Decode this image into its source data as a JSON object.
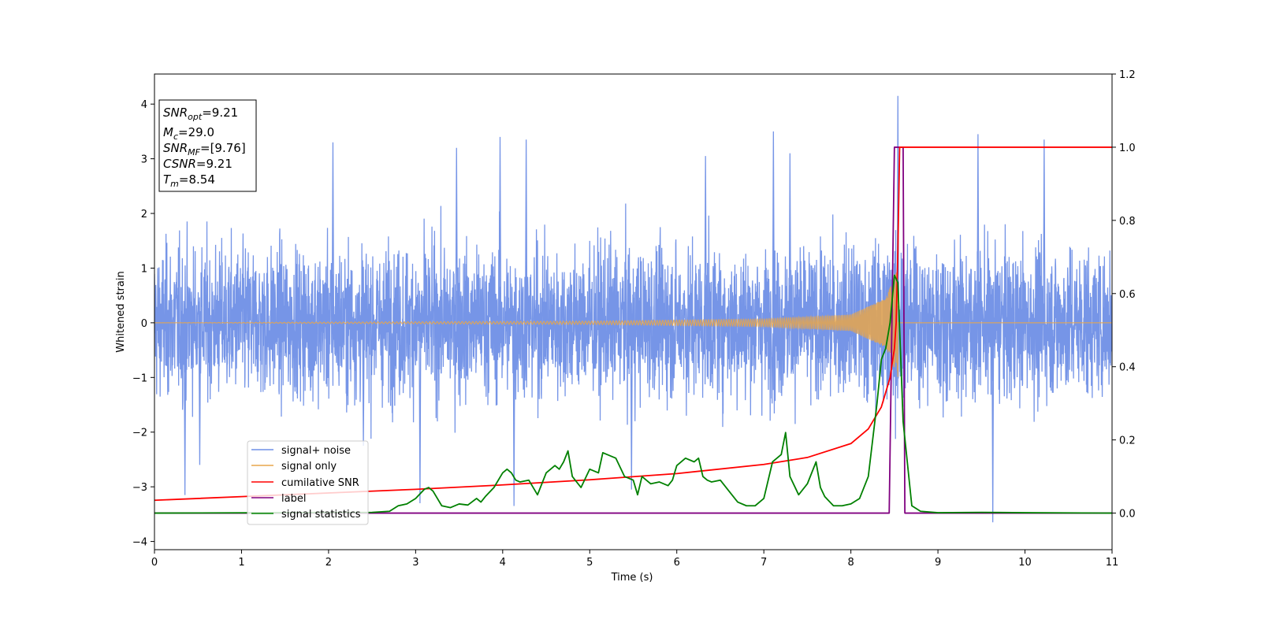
{
  "chart_data": {
    "type": "line",
    "xlabel": "Time (s)",
    "ylabel": "Whitened strain",
    "xlim": [
      0,
      11
    ],
    "ylim_left": [
      -4.15,
      4.55
    ],
    "ylim_right": [
      -0.1,
      1.2
    ],
    "xticks": [
      "0",
      "1",
      "2",
      "3",
      "4",
      "5",
      "6",
      "7",
      "8",
      "9",
      "10",
      "11"
    ],
    "yticks_left": [
      "−4",
      "−3",
      "−2",
      "−1",
      "0",
      "1",
      "2",
      "3",
      "4"
    ],
    "yticks_right": [
      "0.0",
      "0.2",
      "0.4",
      "0.6",
      "0.8",
      "1.0",
      "1.2"
    ],
    "grid": false,
    "legend_position": "lower-left",
    "info_box": {
      "snr_opt_main": "SNR",
      "snr_opt_sub": "opt",
      "snr_opt_value": "=9.21",
      "mc_main": "M",
      "mc_sub": "c",
      "mc_value": "=29.0",
      "snr_mf_main": "SNR",
      "snr_mf_sub": "MF",
      "snr_mf_value": "=[9.76]",
      "csnr_main": "CSNR",
      "csnr_value": "=9.21",
      "tm_main": "T",
      "tm_sub": "m",
      "tm_value": "=8.54"
    },
    "merger_time": 8.54,
    "series": [
      {
        "name": "signal+ noise",
        "axis": "left",
        "color": "#6f8fe6",
        "note_description": "white noise approximately spanning -2.5 to 2.5 with spikes to ~4.15 at t=8.54 and ~-3.65 at t=9.63",
        "peaks": [
          {
            "x": 0.35,
            "y": -3.15
          },
          {
            "x": 0.52,
            "y": -2.6
          },
          {
            "x": 2.05,
            "y": 3.3
          },
          {
            "x": 2.4,
            "y": -2.25
          },
          {
            "x": 3.05,
            "y": -3.3
          },
          {
            "x": 3.47,
            "y": 3.2
          },
          {
            "x": 3.97,
            "y": 3.4
          },
          {
            "x": 4.13,
            "y": -3.35
          },
          {
            "x": 4.27,
            "y": 3.35
          },
          {
            "x": 5.48,
            "y": -3.05
          },
          {
            "x": 6.33,
            "y": 3.05
          },
          {
            "x": 7.11,
            "y": 3.5
          },
          {
            "x": 7.3,
            "y": 3.1
          },
          {
            "x": 8.54,
            "y": 4.15
          },
          {
            "x": 9.46,
            "y": 3.45
          },
          {
            "x": 9.63,
            "y": -3.65
          },
          {
            "x": 10.22,
            "y": 3.35
          }
        ]
      },
      {
        "name": "signal only",
        "axis": "left",
        "color": "#e8a64b",
        "note_description": "chirp with amplitude growing from ~0 to ~1 near merger at 8.54 s, zero afterwards",
        "amplitude_at": [
          {
            "x": 5.0,
            "y": 0.03
          },
          {
            "x": 7.0,
            "y": 0.07
          },
          {
            "x": 8.0,
            "y": 0.15
          },
          {
            "x": 8.4,
            "y": 0.45
          },
          {
            "x": 8.54,
            "y": 1.0
          }
        ]
      },
      {
        "name": "cumilative SNR",
        "axis": "right",
        "color": "#ff0000",
        "x": [
          0,
          1,
          2,
          3,
          4,
          5,
          6,
          7,
          7.5,
          8.0,
          8.2,
          8.35,
          8.45,
          8.5,
          8.52,
          8.54,
          8.56,
          11
        ],
        "y": [
          0.035,
          0.045,
          0.055,
          0.065,
          0.077,
          0.091,
          0.108,
          0.133,
          0.152,
          0.19,
          0.23,
          0.29,
          0.37,
          0.45,
          0.52,
          0.72,
          1.0,
          1.0
        ]
      },
      {
        "name": "label",
        "axis": "right",
        "color": "#800080",
        "x": [
          0,
          8.44,
          8.5,
          8.6,
          8.62,
          11
        ],
        "y": [
          0,
          0,
          1.0,
          1.0,
          0,
          0
        ]
      },
      {
        "name": "signal statistics",
        "axis": "right",
        "color": "#008000",
        "x": [
          0,
          2.5,
          2.7,
          2.8,
          2.9,
          3.0,
          3.1,
          3.15,
          3.2,
          3.3,
          3.4,
          3.5,
          3.6,
          3.7,
          3.75,
          3.8,
          3.9,
          4.0,
          4.05,
          4.1,
          4.15,
          4.2,
          4.3,
          4.4,
          4.45,
          4.5,
          4.6,
          4.65,
          4.7,
          4.75,
          4.8,
          4.9,
          5.0,
          5.1,
          5.15,
          5.2,
          5.3,
          5.4,
          5.5,
          5.55,
          5.6,
          5.7,
          5.8,
          5.9,
          5.95,
          6.0,
          6.1,
          6.2,
          6.25,
          6.3,
          6.35,
          6.4,
          6.5,
          6.6,
          6.7,
          6.8,
          6.9,
          7.0,
          7.1,
          7.2,
          7.25,
          7.3,
          7.4,
          7.5,
          7.6,
          7.65,
          7.7,
          7.8,
          7.9,
          8.0,
          8.1,
          8.2,
          8.3,
          8.35,
          8.4,
          8.45,
          8.5,
          8.54,
          8.6,
          8.7,
          8.8,
          9.0,
          9.5,
          10.0,
          11.0
        ],
        "y": [
          0,
          0.002,
          0.005,
          0.02,
          0.025,
          0.04,
          0.065,
          0.07,
          0.06,
          0.02,
          0.015,
          0.025,
          0.022,
          0.04,
          0.03,
          0.045,
          0.07,
          0.11,
          0.12,
          0.11,
          0.09,
          0.085,
          0.09,
          0.05,
          0.08,
          0.11,
          0.13,
          0.12,
          0.14,
          0.17,
          0.1,
          0.07,
          0.12,
          0.11,
          0.165,
          0.16,
          0.15,
          0.1,
          0.09,
          0.05,
          0.1,
          0.08,
          0.085,
          0.075,
          0.09,
          0.13,
          0.15,
          0.14,
          0.15,
          0.1,
          0.09,
          0.085,
          0.09,
          0.06,
          0.03,
          0.02,
          0.02,
          0.04,
          0.14,
          0.16,
          0.22,
          0.1,
          0.05,
          0.08,
          0.14,
          0.07,
          0.045,
          0.02,
          0.02,
          0.025,
          0.04,
          0.1,
          0.3,
          0.42,
          0.45,
          0.52,
          0.65,
          0.63,
          0.25,
          0.02,
          0.005,
          0.001,
          0.002,
          0.001,
          0
        ]
      }
    ]
  }
}
